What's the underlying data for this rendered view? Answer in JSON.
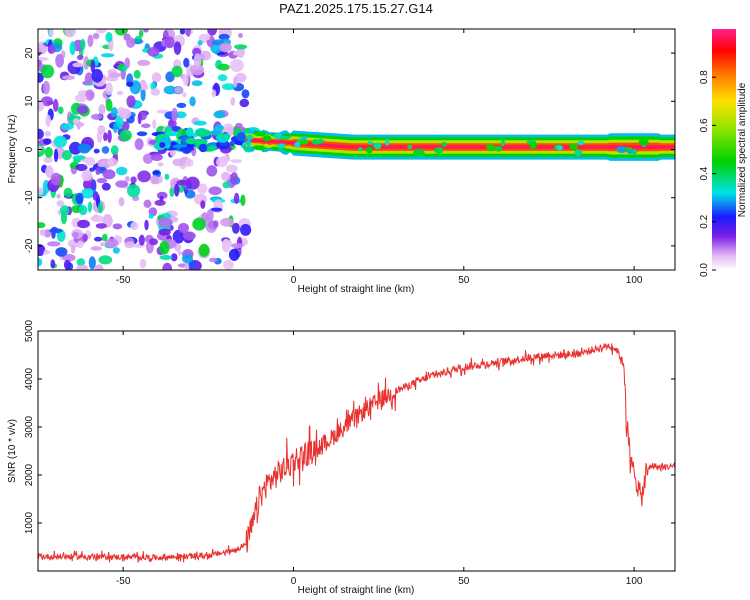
{
  "title": "PAZ1.2025.175.15.27.G14",
  "chart_data": [
    {
      "type": "heatmap",
      "xlabel": "Height of straight line (km)",
      "ylabel": "Frequency (Hz)",
      "xlim": [
        -75,
        112
      ],
      "ylim": [
        -25,
        25
      ],
      "xticks": [
        -50,
        0,
        50,
        100
      ],
      "yticks": [
        -20,
        -10,
        0,
        10,
        20
      ],
      "description_series": [
        {
          "name": "noise_region",
          "x_range": [
            -75,
            -14
          ],
          "freq_spread": [
            -25,
            25
          ],
          "amplitude": [
            0.0,
            0.4
          ]
        },
        {
          "name": "transition_region",
          "x_range": [
            -40,
            -10
          ],
          "freq_center": 2,
          "amplitude": [
            0.2,
            0.4
          ]
        },
        {
          "name": "signal_line",
          "x_range": [
            -14,
            112
          ],
          "freq_center": [
            2,
            0.5
          ],
          "amplitude": [
            0.6,
            1.0
          ]
        }
      ],
      "colorbar": {
        "label": "Normalized spectral amplitude",
        "range": [
          0.0,
          1.0
        ],
        "ticks": [
          0.0,
          0.2,
          0.4,
          0.6,
          0.8
        ],
        "tick_labels": [
          "0.0",
          "0.2",
          "0.4",
          "0.6",
          "0.8"
        ]
      }
    },
    {
      "type": "line",
      "xlabel": "Height of straight line (km)",
      "ylabel": "SNR (10 * v/v)",
      "xlim": [
        -75,
        112
      ],
      "ylim": [
        0,
        5000
      ],
      "xticks": [
        -50,
        0,
        50,
        100
      ],
      "yticks": [
        1000,
        2000,
        3000,
        4000,
        5000
      ],
      "color": "#e8322f",
      "x": [
        -75,
        -60,
        -40,
        -25,
        -18,
        -14,
        -12,
        -10,
        -8,
        -5,
        0,
        5,
        10,
        15,
        20,
        25,
        30,
        35,
        40,
        45,
        50,
        55,
        60,
        65,
        70,
        75,
        80,
        85,
        90,
        93,
        95,
        97,
        98,
        99,
        100,
        101,
        102,
        103,
        104,
        105,
        108,
        112
      ],
      "y": [
        300,
        300,
        280,
        320,
        420,
        550,
        950,
        1500,
        1800,
        2000,
        2300,
        2500,
        2700,
        3000,
        3300,
        3550,
        3750,
        3900,
        4050,
        4150,
        4250,
        4300,
        4350,
        4400,
        4450,
        4500,
        4500,
        4550,
        4650,
        4700,
        4600,
        4300,
        3000,
        2200,
        2100,
        1800,
        1500,
        1800,
        2100,
        2200,
        2150,
        2200
      ]
    }
  ]
}
